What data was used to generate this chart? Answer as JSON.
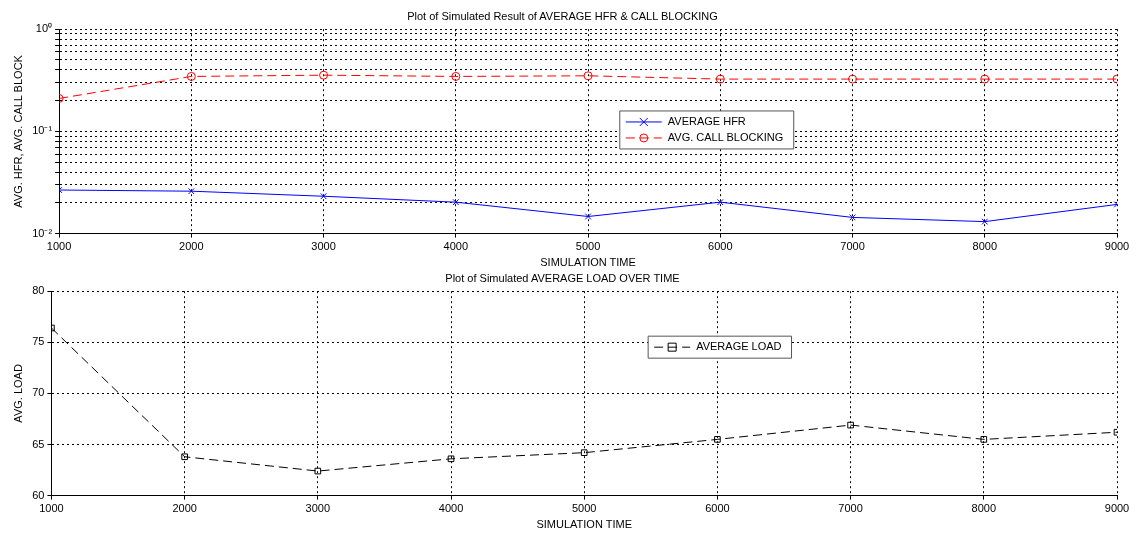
{
  "chart_data": [
    {
      "type": "line",
      "title": "Plot of Simulated Result of AVERAGE HFR & CALL BLOCKING",
      "xlabel": "SIMULATION TIME",
      "ylabel": "AVG. HFR, AVG. CALL BLOCK",
      "log": "y",
      "grid": true,
      "legend": "right",
      "x": [
        1000,
        2000,
        3000,
        4000,
        5000,
        6000,
        7000,
        8000,
        9000
      ],
      "xlim": [
        1000,
        9000
      ],
      "xticks": [
        1000,
        2000,
        3000,
        4000,
        5000,
        6000,
        7000,
        8000,
        9000
      ],
      "ylim": [
        0.01,
        1
      ],
      "yticks": [
        {
          "value": 0.01,
          "label": "10⁻²"
        },
        {
          "value": 0.02,
          "label": null
        },
        {
          "value": 0.03,
          "label": null
        },
        {
          "value": 0.04,
          "label": null
        },
        {
          "value": 0.05,
          "label": null
        },
        {
          "value": 0.06,
          "label": null
        },
        {
          "value": 0.07,
          "label": null
        },
        {
          "value": 0.08,
          "label": null
        },
        {
          "value": 0.09,
          "label": null
        },
        {
          "value": 0.1,
          "label": "10⁻¹"
        },
        {
          "value": 0.2,
          "label": null
        },
        {
          "value": 0.3,
          "label": null
        },
        {
          "value": 0.4,
          "label": null
        },
        {
          "value": 0.5,
          "label": null
        },
        {
          "value": 0.6,
          "label": null
        },
        {
          "value": 0.7,
          "label": null
        },
        {
          "value": 0.8,
          "label": null
        },
        {
          "value": 0.9,
          "label": null
        },
        {
          "value": 1,
          "label": "10⁰"
        }
      ],
      "series": [
        {
          "name": "AVERAGE HFR",
          "color": "#0000ff",
          "marker": "cross",
          "line_style": "solid",
          "values": [
            0.0267,
            0.026,
            0.0232,
            0.0203,
            0.0147,
            0.0203,
            0.0144,
            0.0131,
            0.0193
          ]
        },
        {
          "name": "AVG. CALL BLOCKING",
          "color": "#ff0000",
          "marker": "circle",
          "line_style": "dashed",
          "values": [
            0.21,
            0.345,
            0.355,
            0.345,
            0.35,
            0.325,
            0.325,
            0.325,
            0.325
          ]
        }
      ]
    },
    {
      "type": "line",
      "title": "Plot of Simulated AVERAGE LOAD OVER TIME",
      "xlabel": "SIMULATION TIME",
      "ylabel": "AVG. LOAD",
      "grid": true,
      "legend": "top",
      "x": [
        1000,
        2000,
        3000,
        4000,
        5000,
        6000,
        7000,
        8000,
        9000
      ],
      "xlim": [
        1000,
        9000
      ],
      "xticks": [
        1000,
        2000,
        3000,
        4000,
        5000,
        6000,
        7000,
        8000,
        9000
      ],
      "ylim": [
        60,
        80
      ],
      "yticks": [
        60,
        65,
        70,
        75,
        80
      ],
      "series": [
        {
          "name": "AVERAGE LOAD",
          "color": "#000000",
          "marker": "square",
          "line_style": "dashed",
          "values": [
            76.4,
            63.8,
            62.4,
            63.6,
            64.2,
            65.5,
            66.9,
            65.5,
            66.2
          ]
        }
      ]
    }
  ]
}
